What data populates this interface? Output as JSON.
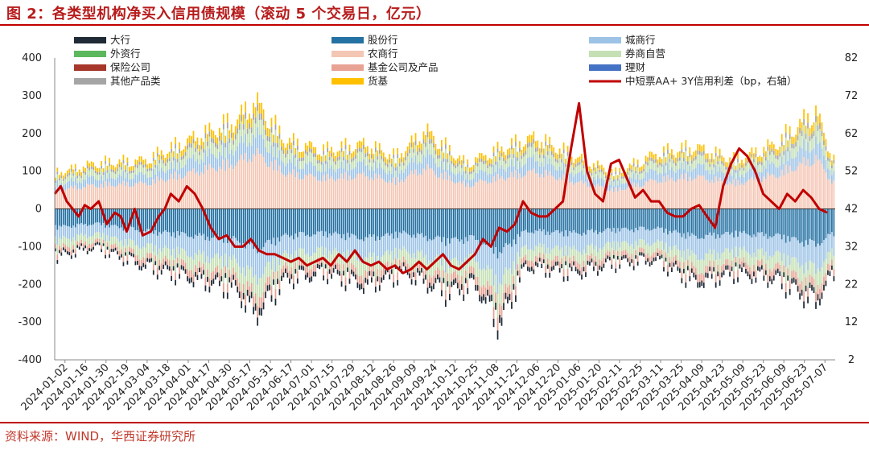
{
  "title": "图 2：各类型机构净买入信用债规模（滚动 5 个交易日，亿元）",
  "source": "资料来源：WIND，华西证券研究所",
  "chart_data": {
    "type": "stacked-bar+line",
    "title": "各类型机构净买入信用债规模（滚动 5 个交易日，亿元）",
    "y_left": {
      "ylim": [
        -400,
        400
      ],
      "ticks": [
        400,
        300,
        200,
        100,
        0,
        -100,
        -200,
        -300,
        -400
      ]
    },
    "y_right": {
      "ylim": [
        2,
        82
      ],
      "ticks": [
        82,
        72,
        62,
        52,
        42,
        32,
        22,
        12,
        2
      ]
    },
    "x_tick_labels": [
      "2024-01-02",
      "2024-01-16",
      "2024-01-30",
      "2024-02-19",
      "2024-03-04",
      "2024-03-18",
      "2024-04-01",
      "2024-04-17",
      "2024-04-30",
      "2024-05-17",
      "2024-05-31",
      "2024-06-17",
      "2024-07-01",
      "2024-07-15",
      "2024-07-29",
      "2024-08-12",
      "2024-08-26",
      "2024-09-09",
      "2024-09-24",
      "2024-10-12",
      "2024-10-25",
      "2024-11-08",
      "2024-11-22",
      "2024-12-06",
      "2024-12-20",
      "2025-01-06",
      "2025-01-20",
      "2025-02-11",
      "2025-02-25",
      "2025-03-11",
      "2025-03-25",
      "2025-04-09",
      "2025-04-23",
      "2025-05-09",
      "2025-05-23",
      "2025-06-09",
      "2025-06-23",
      "2025-07-07"
    ],
    "series": [
      {
        "name": "大行",
        "color": "#1f2a36",
        "axis": "left",
        "kind": "bar"
      },
      {
        "name": "股份行",
        "color": "#2471a3",
        "axis": "left",
        "kind": "bar"
      },
      {
        "name": "城商行",
        "color": "#9dc3e6",
        "axis": "left",
        "kind": "bar"
      },
      {
        "name": "外资行",
        "color": "#5cb85c",
        "axis": "left",
        "kind": "bar"
      },
      {
        "name": "农商行",
        "color": "#f4c6b4",
        "axis": "left",
        "kind": "bar"
      },
      {
        "name": "券商自营",
        "color": "#c5e0b4",
        "axis": "left",
        "kind": "bar"
      },
      {
        "name": "保险公司",
        "color": "#a6372a",
        "axis": "left",
        "kind": "bar"
      },
      {
        "name": "基金公司及产品",
        "color": "#e8a293",
        "axis": "left",
        "kind": "bar"
      },
      {
        "name": "理财",
        "color": "#4472c4",
        "axis": "left",
        "kind": "bar"
      },
      {
        "name": "其他产品类",
        "color": "#a5a5a5",
        "axis": "left",
        "kind": "bar"
      },
      {
        "name": "货基",
        "color": "#ffc000",
        "axis": "left",
        "kind": "bar"
      },
      {
        "name": "中短票AA+ 3Y信用利差（bp，右轴）",
        "color": "#c00000",
        "axis": "right",
        "kind": "line"
      }
    ],
    "spread_line": {
      "name": "中短票AA+ 3Y信用利差（bp，右轴）",
      "x_index": [
        0,
        3,
        6,
        9,
        12,
        15,
        18,
        22,
        26,
        30,
        33,
        36,
        40,
        44,
        48,
        52,
        55,
        58,
        62,
        66,
        70,
        74,
        78,
        82,
        86,
        90,
        94,
        98,
        102,
        106,
        110,
        114,
        118,
        122,
        126,
        130,
        134,
        138,
        142,
        146,
        150,
        154,
        158,
        162,
        166,
        170,
        174,
        178,
        182,
        186,
        190,
        194,
        198,
        202,
        206,
        210,
        214,
        218,
        222,
        226,
        230,
        234,
        238,
        242,
        246,
        250,
        254,
        258,
        262,
        266,
        270,
        274,
        278,
        282,
        286,
        290,
        294,
        298,
        302,
        306,
        310,
        314,
        318,
        322,
        326,
        330,
        334,
        338,
        342,
        346,
        350,
        354,
        358,
        362,
        366,
        370,
        374,
        378,
        382,
        386
      ],
      "values": [
        46,
        48,
        44,
        42,
        40,
        43,
        42,
        44,
        38,
        41,
        40,
        36,
        42,
        35,
        36,
        40,
        42,
        46,
        44,
        48,
        46,
        42,
        37,
        34,
        35,
        32,
        32,
        34,
        31,
        30,
        30,
        29,
        28,
        29,
        27,
        28,
        29,
        27,
        30,
        28,
        31,
        28,
        27,
        28,
        26,
        27,
        25,
        26,
        28,
        26,
        28,
        30,
        27,
        26,
        28,
        30,
        34,
        32,
        37,
        36,
        38,
        44,
        41,
        40,
        40,
        42,
        44,
        58,
        70,
        52,
        46,
        44,
        54,
        55,
        50,
        45,
        47,
        44,
        44,
        41,
        40,
        40,
        42,
        43,
        40,
        37,
        48,
        54,
        58,
        56,
        52,
        46,
        44,
        42,
        46,
        44,
        47,
        45,
        42,
        41
      ]
    }
  }
}
